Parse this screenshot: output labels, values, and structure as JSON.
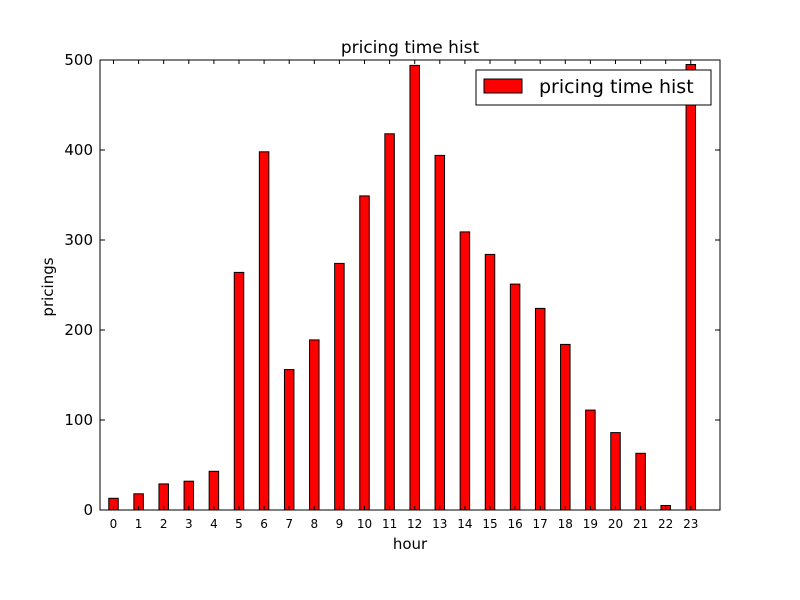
{
  "chart_data": {
    "type": "bar",
    "title": "pricing time hist",
    "xlabel": "hour",
    "ylabel": "pricings",
    "categories": [
      "0",
      "1",
      "2",
      "3",
      "4",
      "5",
      "6",
      "7",
      "8",
      "9",
      "10",
      "11",
      "12",
      "13",
      "14",
      "15",
      "16",
      "17",
      "18",
      "19",
      "20",
      "21",
      "22",
      "23"
    ],
    "series": [
      {
        "name": "pricing time hist",
        "color": "#ff0000",
        "values": [
          13,
          18,
          29,
          32,
          43,
          264,
          398,
          156,
          189,
          274,
          349,
          418,
          494,
          394,
          309,
          284,
          251,
          224,
          184,
          111,
          86,
          63,
          5,
          495
        ]
      }
    ],
    "ylim": [
      0,
      500
    ],
    "yticks": [
      0,
      100,
      200,
      300,
      400,
      500
    ],
    "grid": false,
    "legend_position": "top-right"
  }
}
